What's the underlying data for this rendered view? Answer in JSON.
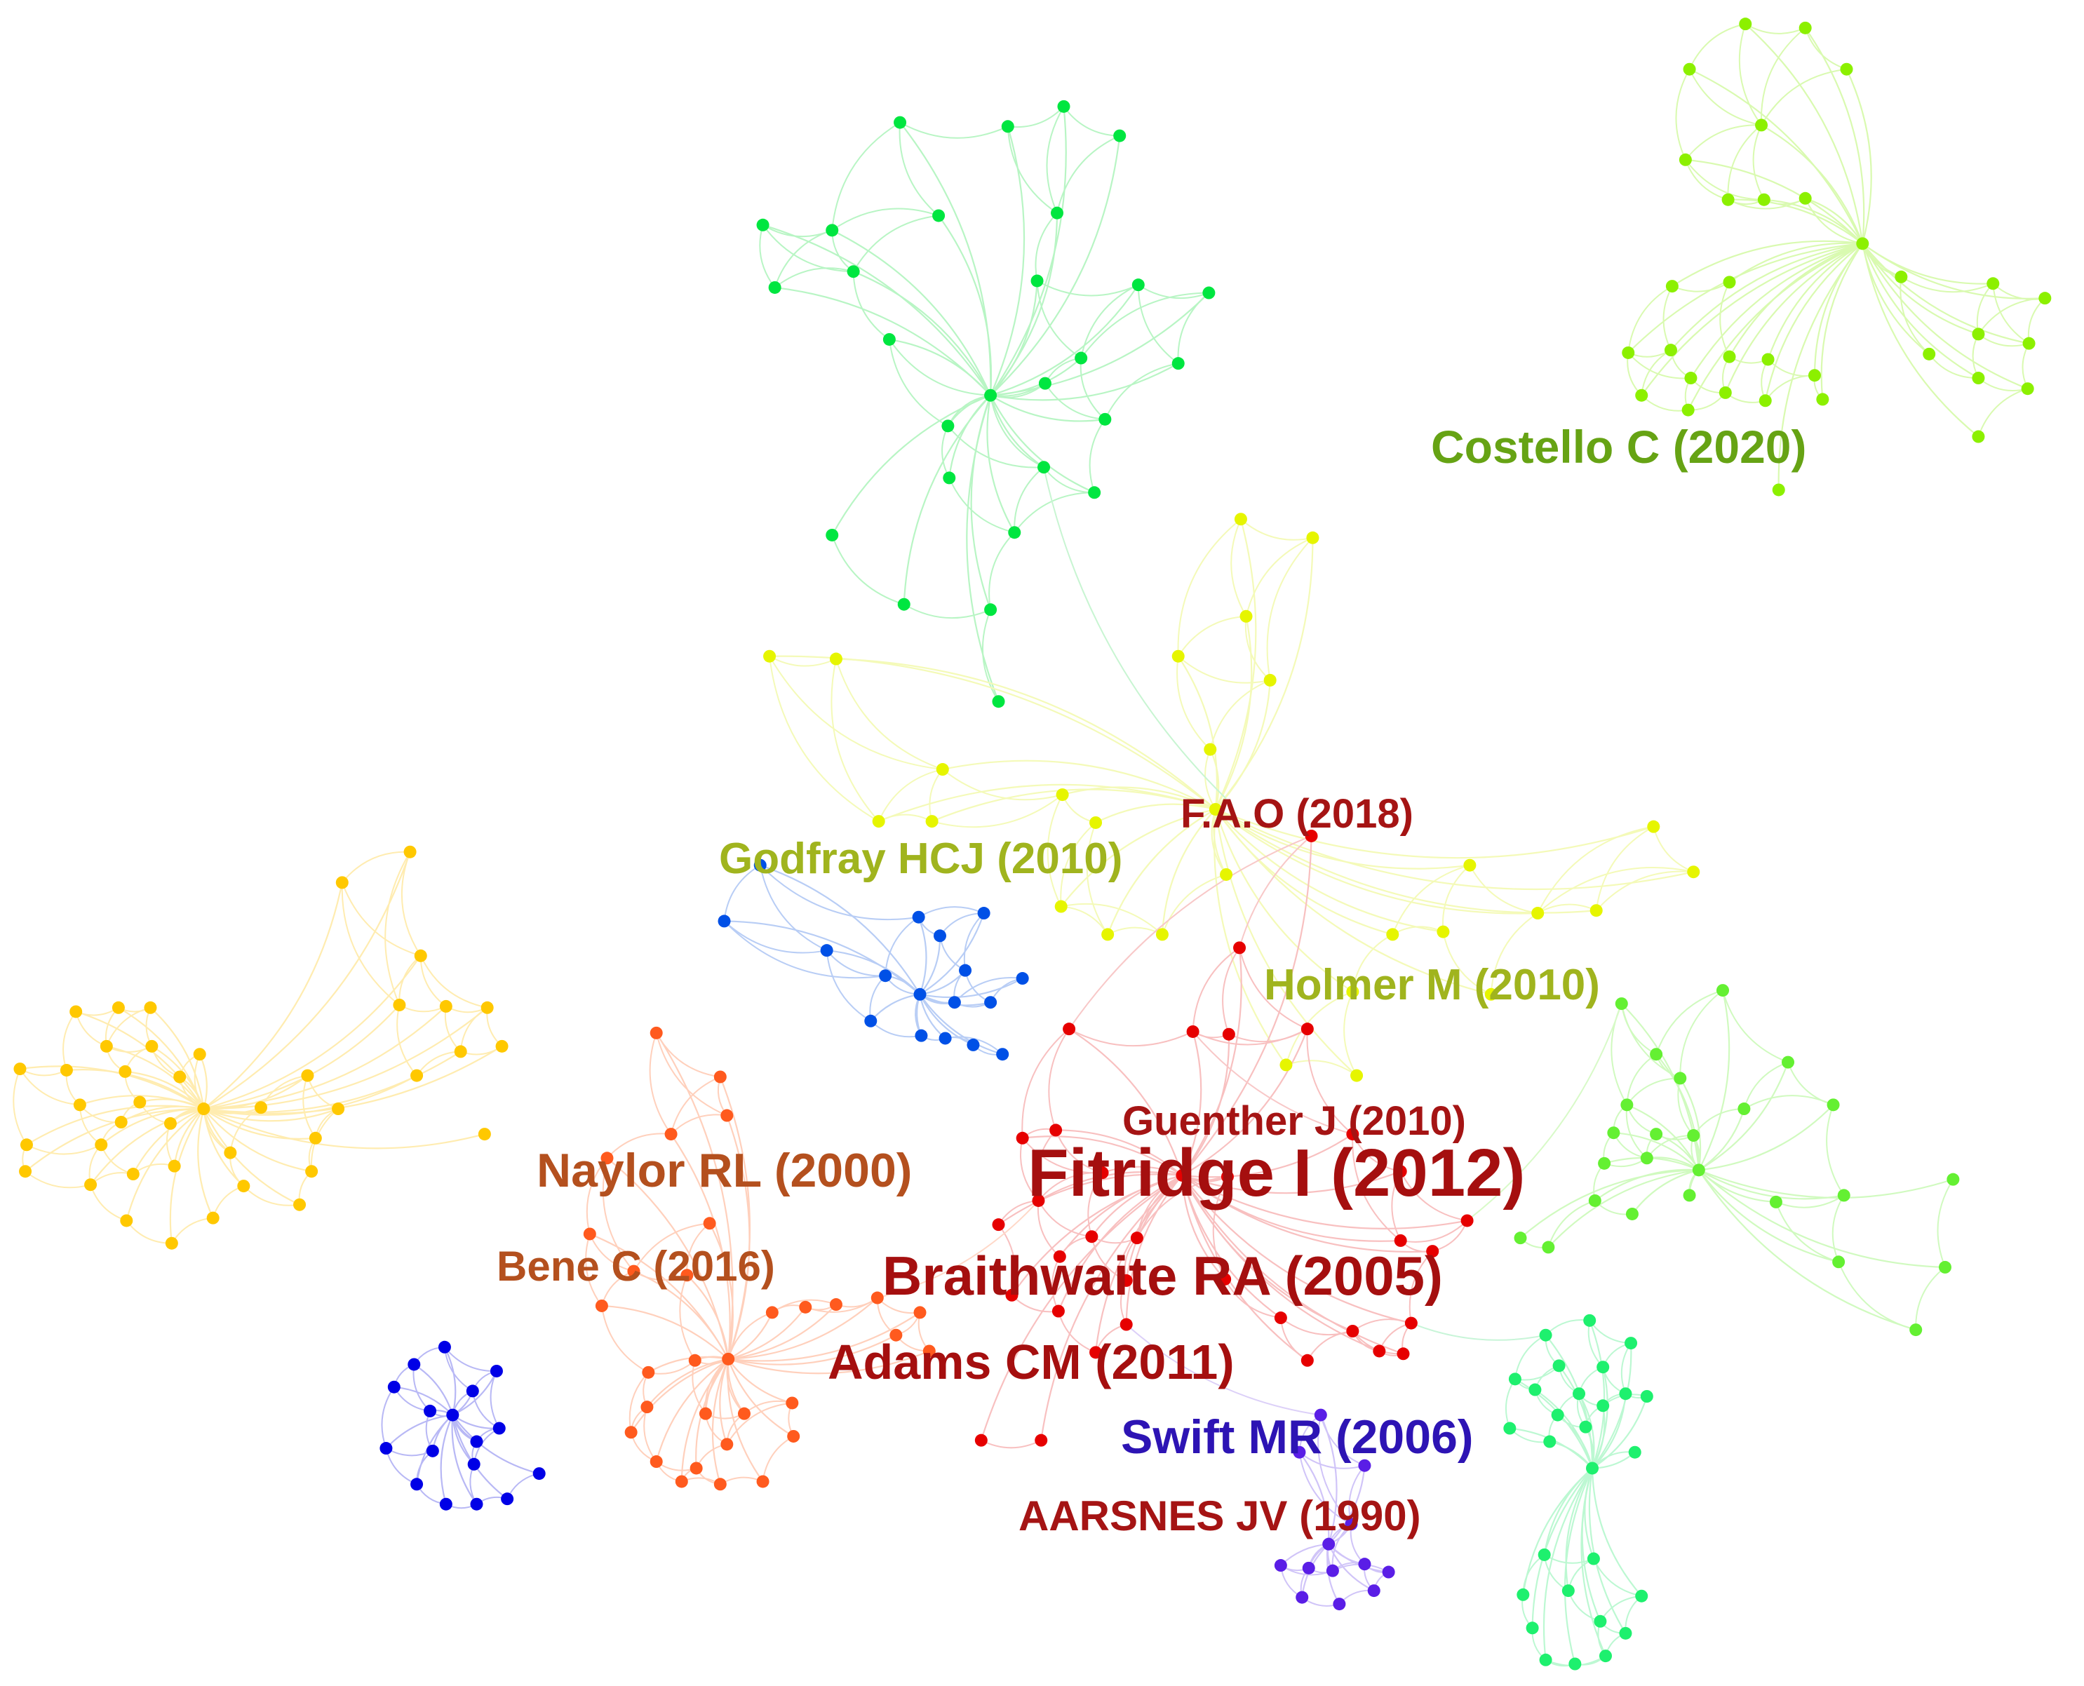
{
  "network": {
    "clusters": [
      {
        "id": "green-top",
        "color": "#00e640",
        "edge_color": "#b8f5c4"
      },
      {
        "id": "lime-topright",
        "color": "#8cf000",
        "edge_color": "#d9fab0"
      },
      {
        "id": "yellow-mid",
        "color": "#e6f500",
        "edge_color": "#f4fab8"
      },
      {
        "id": "blue-godfray",
        "color": "#0050e6",
        "edge_color": "#b8cdf5"
      },
      {
        "id": "orange-left",
        "color": "#ffc800",
        "edge_color": "#ffecb0"
      },
      {
        "id": "red-center",
        "color": "#e60000",
        "edge_color": "#f8c0c0"
      },
      {
        "id": "orange-red",
        "color": "#ff5a1e",
        "edge_color": "#ffd0bc"
      },
      {
        "id": "blue-bottomleft",
        "color": "#0000e6",
        "edge_color": "#b8b8f5"
      },
      {
        "id": "purple-swift",
        "color": "#5a1ee6",
        "edge_color": "#d0c4f8"
      },
      {
        "id": "green-right",
        "color": "#64f032",
        "edge_color": "#d0fabf"
      },
      {
        "id": "green-bottomright",
        "color": "#1ef06e",
        "edge_color": "#bcf8d2"
      }
    ],
    "labels": [
      {
        "text": "Costello C (2020)",
        "color": "#66a314"
      },
      {
        "text": "Godfray HCJ (2010)",
        "color": "#a0b41e"
      },
      {
        "text": "F.A.O (2018)",
        "color": "#a51414"
      },
      {
        "text": "Holmer M (2010)",
        "color": "#a0b41e"
      },
      {
        "text": "Guenther J (2010)",
        "color": "#a51414"
      },
      {
        "text": "Naylor RL (2000)",
        "color": "#b4501e"
      },
      {
        "text": "Fitridge I (2012)",
        "color": "#a50f0f"
      },
      {
        "text": "Bene C (2016)",
        "color": "#b4501e"
      },
      {
        "text": "Braithwaite RA (2005)",
        "color": "#a50f0f"
      },
      {
        "text": "Adams CM (2011)",
        "color": "#a50f0f"
      },
      {
        "text": "Swift MR (2006)",
        "color": "#2d14b4"
      },
      {
        "text": "AARSNES JV (1990)",
        "color": "#a51414"
      }
    ]
  }
}
